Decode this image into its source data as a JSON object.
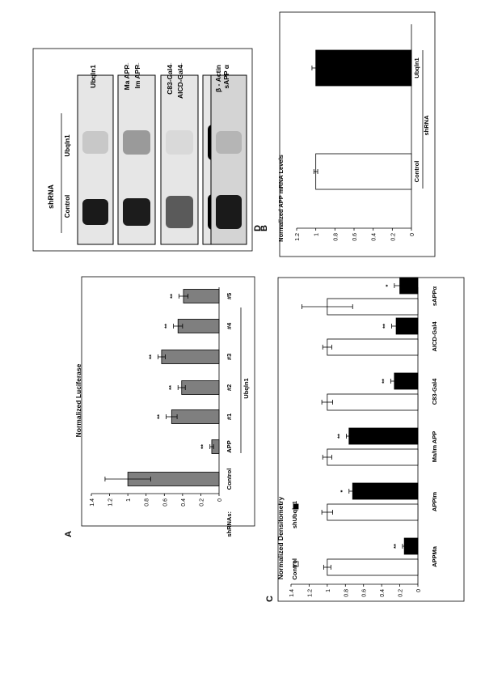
{
  "panel_labels": {
    "a": "A",
    "b": "B",
    "c": "C",
    "d": "D"
  },
  "colors": {
    "gray_bar": "#7f7f7f",
    "black_bar": "#000000",
    "white_bar": "#ffffff"
  },
  "chart_data": [
    {
      "id": "A",
      "type": "bar",
      "ylabel": "Normalized Luciferase",
      "ylim": [
        0,
        1.4
      ],
      "yticks": [
        "1.4",
        "1.2",
        "1",
        "0.8",
        "0.6",
        "0.4",
        "0.2",
        "0"
      ],
      "xprefix": "shRNAs:",
      "categories": [
        "Control",
        "APP",
        "#1",
        "#2",
        "#3",
        "#4",
        "#5"
      ],
      "group_label": "Ubqln1",
      "values": [
        1.0,
        0.08,
        0.52,
        0.41,
        0.63,
        0.45,
        0.39
      ],
      "errors": [
        0.25,
        0.02,
        0.06,
        0.04,
        0.04,
        0.05,
        0.05
      ],
      "significance": [
        "",
        "**",
        "**",
        "**",
        "**",
        "**",
        "**"
      ]
    },
    {
      "id": "B",
      "type": "table",
      "title": "shRNA",
      "columns": [
        "Control",
        "Ubqln1"
      ],
      "rows": [
        "Ubqln1",
        "Ma APP",
        "Im APP",
        "C83-Gal4",
        "AICD-Gal4",
        "β - Actin",
        "sAPP α"
      ]
    },
    {
      "id": "C",
      "type": "bar",
      "ylabel": "Normalized Densitometry",
      "ylim": [
        0,
        1.4
      ],
      "yticks": [
        "1.4",
        "1.2",
        "1",
        "0.8",
        "0.6",
        "0.4",
        "0.2",
        "0"
      ],
      "categories": [
        "APPMa",
        "APPIm",
        "Ma/Im APP",
        "C83-Gal4",
        "AICD-Gal4",
        "sAPPα"
      ],
      "series": [
        {
          "name": "Control",
          "values": [
            1.0,
            1.0,
            1.0,
            1.0,
            1.0,
            1.0
          ],
          "errors": [
            0.04,
            0.06,
            0.05,
            0.06,
            0.05,
            0.28
          ]
        },
        {
          "name": "shUbqln1",
          "values": [
            0.15,
            0.72,
            0.76,
            0.26,
            0.24,
            0.2
          ],
          "errors": [
            0.02,
            0.04,
            0.03,
            0.04,
            0.05,
            0.06
          ],
          "significance": [
            "**",
            "*",
            "**",
            "**",
            "**",
            "*"
          ]
        }
      ],
      "legend": "top-left"
    },
    {
      "id": "D",
      "type": "bar",
      "ylabel": "Normalized APP mRNA Levels",
      "ylim": [
        0,
        1.2
      ],
      "yticks": [
        "1.2",
        "1",
        "0.8",
        "0.6",
        "0.4",
        "0.2",
        "0"
      ],
      "categories": [
        "Control",
        "Ubqln1"
      ],
      "group_label": "shRNA",
      "values": [
        1.0,
        1.0
      ],
      "errors": [
        0.02,
        0.04
      ]
    }
  ]
}
